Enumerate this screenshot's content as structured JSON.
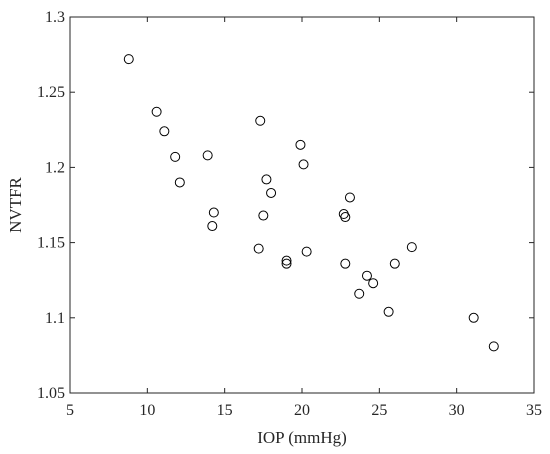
{
  "chart_data": {
    "type": "scatter",
    "title": "",
    "xlabel": "IOP (mmHg)",
    "ylabel": "NVTFR",
    "xlim": [
      5,
      35
    ],
    "ylim": [
      1.05,
      1.3
    ],
    "xticks": [
      5,
      10,
      15,
      20,
      25,
      30,
      35
    ],
    "yticks": [
      1.05,
      1.1,
      1.15,
      1.2,
      1.25,
      1.3
    ],
    "xtick_labels": [
      "5",
      "10",
      "15",
      "20",
      "25",
      "30",
      "35"
    ],
    "ytick_labels": [
      "1.05",
      "1.1",
      "1.15",
      "1.2",
      "1.25",
      "1.3"
    ],
    "grid": false,
    "marker": "open-circle",
    "marker_color": "#000000",
    "series": [
      {
        "x": [
          8.8,
          10.6,
          11.1,
          11.8,
          12.1,
          13.9,
          14.2,
          14.3,
          17.2,
          17.3,
          17.5,
          17.7,
          18.0,
          19.0,
          19.0,
          19.9,
          20.1,
          20.3,
          22.7,
          22.8,
          22.8,
          23.1,
          23.7,
          24.2,
          24.6,
          25.6,
          26.0,
          27.1,
          31.1,
          32.4
        ],
        "y": [
          1.272,
          1.237,
          1.224,
          1.207,
          1.19,
          1.208,
          1.161,
          1.17,
          1.146,
          1.231,
          1.168,
          1.192,
          1.183,
          1.138,
          1.136,
          1.215,
          1.202,
          1.144,
          1.169,
          1.167,
          1.136,
          1.18,
          1.116,
          1.128,
          1.123,
          1.104,
          1.136,
          1.147,
          1.1,
          1.081
        ]
      }
    ]
  }
}
